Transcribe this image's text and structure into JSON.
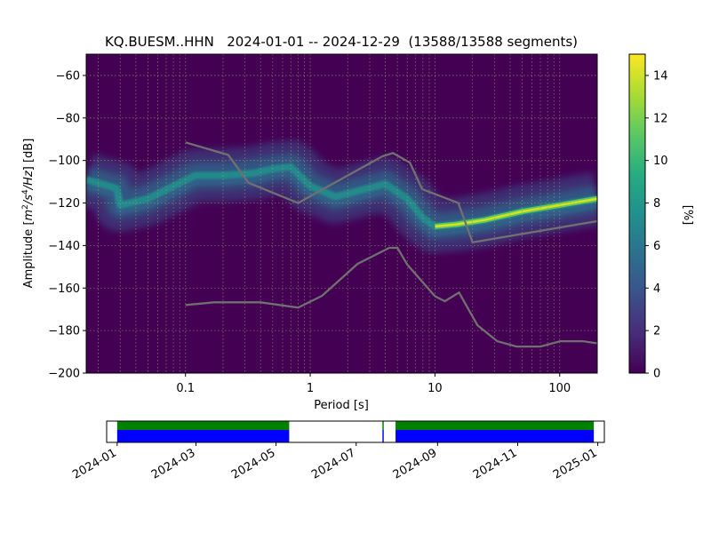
{
  "chart_data": [
    {
      "type": "heatmap",
      "title": "KQ.BUESM..HHN   2024-01-01 -- 2024-12-29  (13588/13588 segments)",
      "xlabel": "Period [s]",
      "ylabel": "Amplitude [m²/s⁴/Hz] [dB]",
      "ylabel_parts": {
        "prefix": "Amplitude [",
        "m": "m",
        "sq": "2",
        "s": "/s",
        "four": "4",
        "hz": "/Hz",
        "suffix": "] [dB]"
      },
      "x_scale": "log",
      "xlim": [
        0.016,
        200
      ],
      "ylim": [
        -200,
        -50
      ],
      "x_ticks": [
        0.1,
        1,
        10,
        100
      ],
      "x_tick_labels": [
        "0.1",
        "1",
        "10",
        "100"
      ],
      "y_ticks": [
        -60,
        -80,
        -100,
        -120,
        -140,
        -160,
        -180,
        -200
      ],
      "y_tick_labels": [
        "−60",
        "−80",
        "−100",
        "−120",
        "−140",
        "−160",
        "−180",
        "−200"
      ],
      "grid": true,
      "colorbar": {
        "label": "[%]",
        "range": [
          0,
          15
        ],
        "ticks": [
          0,
          2,
          4,
          6,
          8,
          10,
          12,
          14
        ],
        "tick_labels": [
          "0",
          "2",
          "4",
          "6",
          "8",
          "10",
          "12",
          "14"
        ],
        "colormap": [
          "#440154",
          "#472c7a",
          "#3b518b",
          "#2c718e",
          "#21908d",
          "#27ad81",
          "#5cc863",
          "#aadc32",
          "#fde725"
        ]
      },
      "mode_curve": [
        {
          "period": 0.016,
          "db": -109
        },
        {
          "period": 0.028,
          "db": -113
        },
        {
          "period": 0.03,
          "db": -121
        },
        {
          "period": 0.05,
          "db": -118
        },
        {
          "period": 0.08,
          "db": -112
        },
        {
          "period": 0.12,
          "db": -107
        },
        {
          "period": 0.2,
          "db": -107
        },
        {
          "period": 0.35,
          "db": -106
        },
        {
          "period": 0.5,
          "db": -104
        },
        {
          "period": 0.7,
          "db": -103
        },
        {
          "period": 1.0,
          "db": -112
        },
        {
          "period": 1.6,
          "db": -117
        },
        {
          "period": 2.5,
          "db": -114
        },
        {
          "period": 4.0,
          "db": -111
        },
        {
          "period": 6.0,
          "db": -118
        },
        {
          "period": 8.0,
          "db": -127
        },
        {
          "period": 10.0,
          "db": -131
        },
        {
          "period": 15.0,
          "db": -130
        },
        {
          "period": 25.0,
          "db": -128
        },
        {
          "period": 50.0,
          "db": -124
        },
        {
          "period": 100.0,
          "db": -121
        },
        {
          "period": 200.0,
          "db": -118
        }
      ],
      "nhnm": [
        {
          "period": 0.1,
          "db": -91.5
        },
        {
          "period": 0.22,
          "db": -97.4
        },
        {
          "period": 0.32,
          "db": -110.5
        },
        {
          "period": 0.8,
          "db": -120
        },
        {
          "period": 3.8,
          "db": -98
        },
        {
          "period": 4.6,
          "db": -96.5
        },
        {
          "period": 6.3,
          "db": -101
        },
        {
          "period": 7.9,
          "db": -113.5
        },
        {
          "period": 15.4,
          "db": -120
        },
        {
          "period": 20,
          "db": -138.5
        },
        {
          "period": 200,
          "db": -128.5
        }
      ],
      "nlnm": [
        {
          "period": 0.1,
          "db": -168
        },
        {
          "period": 0.17,
          "db": -166.7
        },
        {
          "period": 0.4,
          "db": -166.7
        },
        {
          "period": 0.8,
          "db": -169.2
        },
        {
          "period": 1.24,
          "db": -163.7
        },
        {
          "period": 2.4,
          "db": -148.6
        },
        {
          "period": 4.3,
          "db": -141.1
        },
        {
          "period": 5.0,
          "db": -141.1
        },
        {
          "period": 6.0,
          "db": -149
        },
        {
          "period": 10.0,
          "db": -163.8
        },
        {
          "period": 12.0,
          "db": -166.2
        },
        {
          "period": 15.6,
          "db": -162.1
        },
        {
          "period": 21.9,
          "db": -177.5
        },
        {
          "period": 31.6,
          "db": -185
        },
        {
          "period": 45,
          "db": -187.5
        },
        {
          "period": 70,
          "db": -187.5
        },
        {
          "period": 101,
          "db": -185
        },
        {
          "period": 154,
          "db": -185
        },
        {
          "period": 200,
          "db": -186
        }
      ]
    },
    {
      "type": "timeline",
      "x_tick_labels": [
        "2024-01",
        "2024-03",
        "2024-05",
        "2024-07",
        "2024-09",
        "2024-11",
        "2025-01"
      ],
      "x_tick_dates": [
        "2024-01-01",
        "2024-03-01",
        "2024-05-01",
        "2024-07-01",
        "2024-09-01",
        "2024-11-01",
        "2025-01-01"
      ],
      "xlim": [
        "2023-12-24",
        "2025-01-06"
      ],
      "coverage": [
        {
          "start": "2024-01-01",
          "end": "2024-05-11"
        },
        {
          "start": "2024-07-21",
          "end": "2024-07-22"
        },
        {
          "start": "2024-07-31",
          "end": "2024-12-29"
        }
      ],
      "colors": {
        "data": "#0000ff",
        "used": "#008000"
      }
    }
  ]
}
